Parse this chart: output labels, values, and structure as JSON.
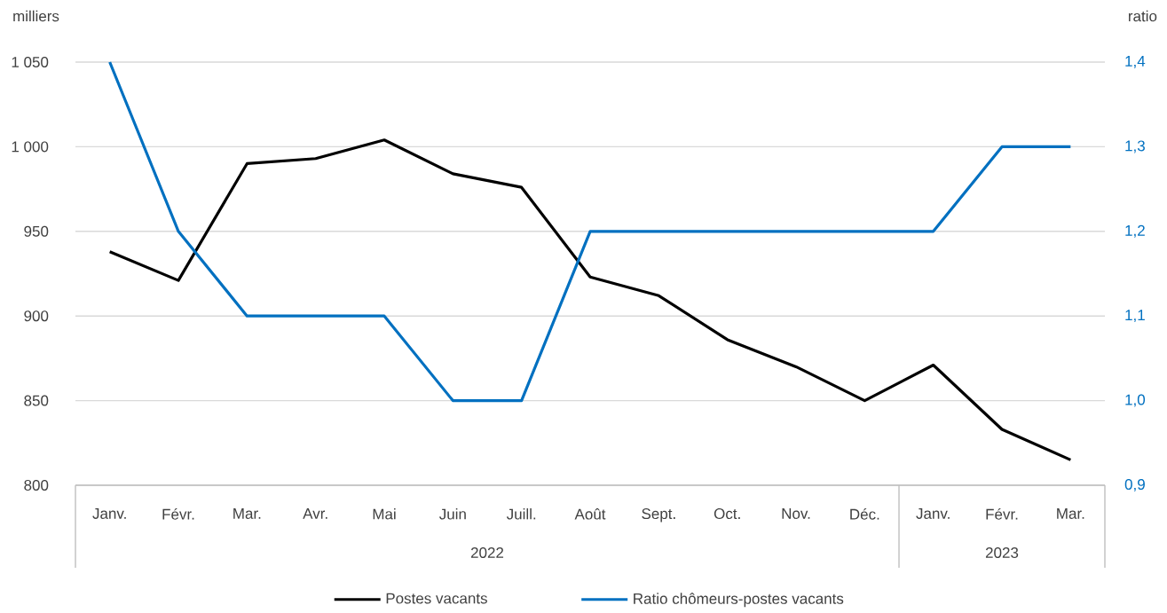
{
  "chart_data": {
    "type": "line",
    "ylabel": "milliers",
    "y2label": "ratio",
    "categories": [
      "Janv.",
      "Févr.",
      "Mar.",
      "Avr.",
      "Mai",
      "Juin",
      "Juill.",
      "Août",
      "Sept.",
      "Oct.",
      "Nov.",
      "Déc.",
      "Janv.",
      "Févr.",
      "Mar."
    ],
    "series": [
      {
        "name": "Postes vacants",
        "color": "#000000",
        "values": [
          938,
          921,
          990,
          993,
          1004,
          984,
          976,
          923,
          912,
          886,
          870,
          850,
          871,
          833,
          815
        ]
      },
      {
        "name": "Ratio chômeurs-postes vacants",
        "color": "#0070c0",
        "axis": "y2",
        "values": [
          1.4,
          1.2,
          1.1,
          1.1,
          1.1,
          1.0,
          1.0,
          1.2,
          1.2,
          1.2,
          1.2,
          1.2,
          1.2,
          1.3,
          1.3
        ]
      }
    ],
    "ylim": [
      800,
      1050
    ],
    "yticks": [
      800,
      850,
      900,
      950,
      {
        "value": 1000,
        "label": "1 000"
      },
      {
        "value": 1050,
        "label": "1 050"
      }
    ],
    "y2lim": [
      0.9,
      1.4
    ],
    "y2ticks": [
      {
        "value": 0.9,
        "label": "0,9"
      },
      {
        "value": 1.0,
        "label": "1,0"
      },
      {
        "value": 1.1,
        "label": "1,1"
      },
      {
        "value": 1.2,
        "label": "1,2"
      },
      {
        "value": 1.3,
        "label": "1,3"
      },
      {
        "value": 1.4,
        "label": "1,4"
      }
    ],
    "annotations": [
      "2022",
      "2023"
    ],
    "grid": "y",
    "legend": "bottom",
    "marker": "none",
    "line_style": "solid"
  }
}
